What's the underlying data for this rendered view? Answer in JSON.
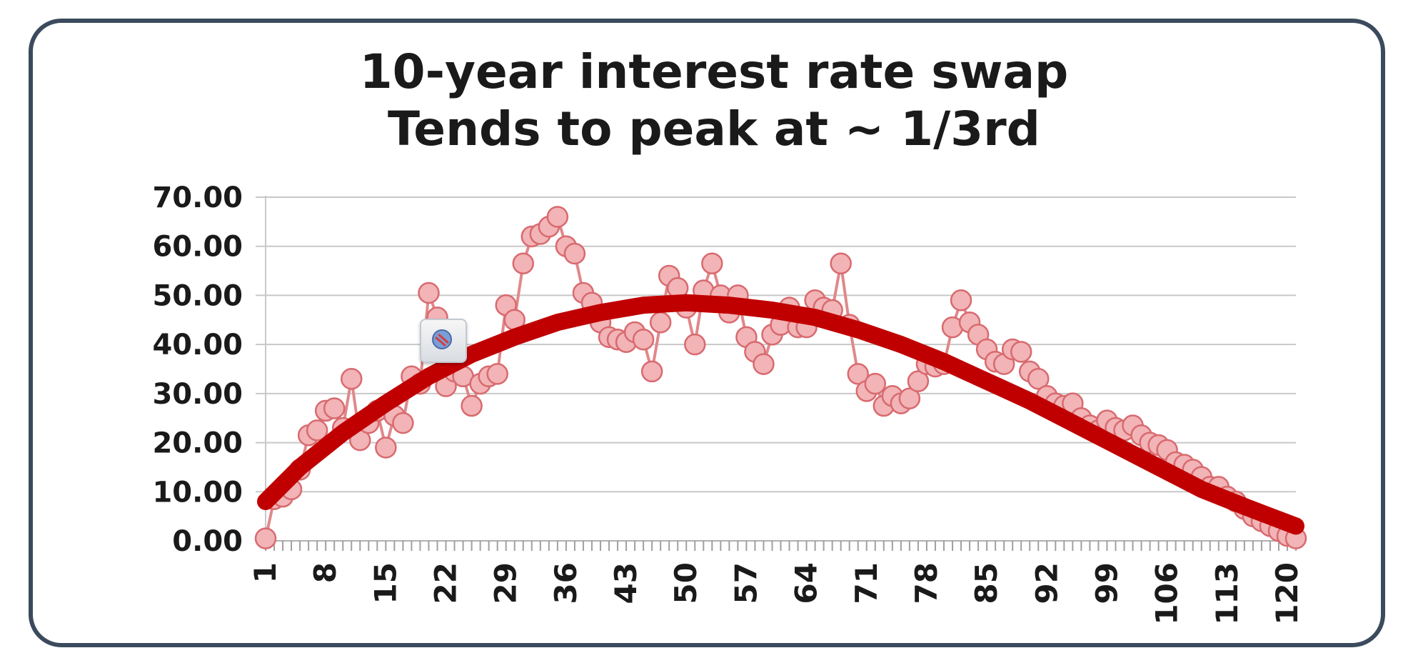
{
  "chart_data": {
    "type": "line",
    "title": "10-year interest rate swap",
    "subtitle": "Tends to peak at ~ 1/3rd",
    "xlabel": "",
    "ylabel": "",
    "ylim": [
      0,
      70
    ],
    "yticks": [
      "0.00",
      "10.00",
      "20.00",
      "30.00",
      "40.00",
      "50.00",
      "60.00",
      "70.00"
    ],
    "xlim": [
      1,
      121
    ],
    "xticks": [
      "1",
      "8",
      "15",
      "22",
      "29",
      "36",
      "43",
      "50",
      "57",
      "64",
      "71",
      "78",
      "85",
      "92",
      "99",
      "106",
      "113",
      "120"
    ],
    "grid": "horizontal",
    "series": [
      {
        "style": "line-with-circle-markers",
        "color": "#e8979a",
        "x": [
          1,
          2,
          3,
          4,
          5,
          6,
          7,
          8,
          9,
          10,
          11,
          12,
          13,
          14,
          15,
          16,
          17,
          18,
          19,
          20,
          21,
          22,
          23,
          24,
          25,
          26,
          27,
          28,
          29,
          30,
          31,
          32,
          33,
          34,
          35,
          36,
          37,
          38,
          39,
          40,
          41,
          42,
          43,
          44,
          45,
          46,
          47,
          48,
          49,
          50,
          51,
          52,
          53,
          54,
          55,
          56,
          57,
          58,
          59,
          60,
          61,
          62,
          63,
          64,
          65,
          66,
          67,
          68,
          69,
          70,
          71,
          72,
          73,
          74,
          75,
          76,
          77,
          78,
          79,
          80,
          81,
          82,
          83,
          84,
          85,
          86,
          87,
          88,
          89,
          90,
          91,
          92,
          93,
          94,
          95,
          96,
          97,
          98,
          99,
          100,
          101,
          102,
          103,
          104,
          105,
          106,
          107,
          108,
          109,
          110,
          111,
          112,
          113,
          114,
          115,
          116,
          117,
          118,
          119,
          120,
          121
        ],
        "values": [
          0.5,
          8.5,
          9.0,
          10.5,
          14.5,
          21.5,
          22.5,
          26.5,
          27.0,
          23.0,
          33.0,
          20.5,
          24.0,
          26.5,
          19.0,
          25.5,
          24.0,
          33.5,
          32.0,
          50.5,
          45.5,
          31.5,
          34.5,
          33.5,
          27.5,
          32.0,
          33.5,
          34.0,
          48.0,
          45.0,
          56.5,
          62.0,
          62.5,
          64.0,
          66.0,
          60.0,
          58.5,
          50.5,
          48.5,
          44.5,
          41.5,
          41.0,
          40.5,
          42.5,
          41.0,
          34.5,
          44.5,
          54.0,
          51.5,
          47.5,
          40.0,
          51.0,
          56.5,
          50.0,
          46.5,
          50.0,
          41.5,
          38.5,
          36.0,
          42.0,
          44.0,
          47.5,
          43.5,
          43.5,
          49.0,
          47.5,
          47.0,
          56.5,
          44.0,
          34.0,
          30.5,
          32.0,
          27.5,
          29.5,
          28.0,
          29.0,
          32.5,
          36.0,
          35.5,
          36.0,
          43.5,
          49.0,
          44.5,
          42.0,
          39.0,
          36.5,
          36.0,
          39.0,
          38.5,
          34.5,
          33.0,
          29.5,
          28.0,
          27.5,
          28.0,
          25.0,
          23.5,
          22.5,
          24.5,
          23.0,
          22.5,
          23.5,
          21.5,
          20.0,
          19.5,
          18.5,
          16.0,
          15.5,
          14.5,
          13.0,
          11.0,
          11.0,
          9.0,
          8.0,
          6.5,
          5.0,
          4.0,
          3.0,
          2.0,
          1.0,
          0.5
        ]
      },
      {
        "style": "trendline",
        "color": "#c00000",
        "fit": "polynomial-2",
        "x": [
          1,
          5,
          10,
          15,
          20,
          25,
          30,
          35,
          40,
          45,
          50,
          55,
          60,
          65,
          70,
          75,
          80,
          85,
          90,
          95,
          100,
          105,
          110,
          115,
          121
        ],
        "values": [
          8.0,
          15.0,
          22.0,
          28.0,
          33.5,
          38.0,
          41.5,
          44.5,
          46.5,
          48.0,
          48.5,
          48.0,
          47.0,
          45.5,
          43.0,
          40.0,
          36.5,
          32.5,
          28.5,
          24.0,
          19.5,
          15.0,
          10.5,
          7.0,
          3.0
        ]
      }
    ]
  }
}
